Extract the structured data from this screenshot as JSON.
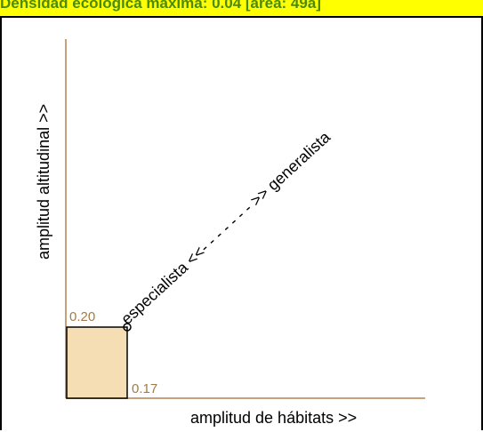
{
  "header": {
    "title": "Densidad ecológica máxima: 0.04 [área: 49a]"
  },
  "diagram": {
    "x_axis_label": "amplitud de hábitats >>",
    "y_axis_label": "amplitud altitudinal >>",
    "diagonal_label": "especialista <<- - - - - - - >> generalista",
    "x_value": 0.17,
    "y_value": 0.2,
    "x_value_label": "0.17",
    "y_value_label": "0.20",
    "axis_color": "#c8a07a",
    "box_fill": "#f5deb3",
    "box_stroke": "#000000",
    "label_color": "#a07c4a",
    "header_bg": "#ffff00",
    "header_text_color": "#4a8a08"
  }
}
